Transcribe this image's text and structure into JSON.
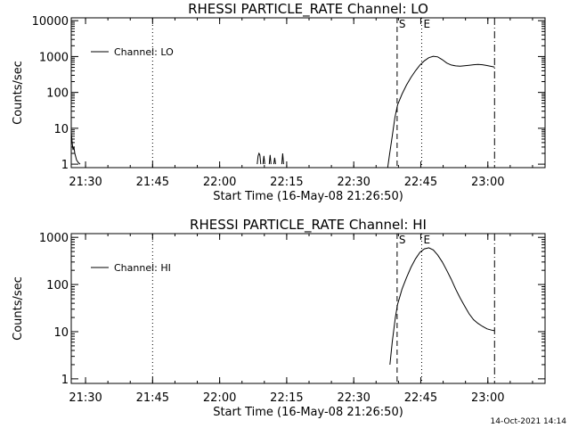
{
  "footer": {
    "timestamp": "14-Oct-2021 14:14"
  },
  "chart_data": [
    {
      "type": "line",
      "title": "RHESSI PARTICLE_RATE Channel: LO",
      "xlabel": "Start Time (16-May-08 21:26:50)",
      "ylabel": "Counts/sec",
      "x_unit": "minutes after 21:26:50 start",
      "xlim": [
        0,
        106
      ],
      "x_ticks": [
        {
          "x": 3.2,
          "label": "21:30"
        },
        {
          "x": 18.2,
          "label": "21:45"
        },
        {
          "x": 33.2,
          "label": "22:00"
        },
        {
          "x": 48.2,
          "label": "22:15"
        },
        {
          "x": 63.2,
          "label": "22:30"
        },
        {
          "x": 78.2,
          "label": "22:45"
        },
        {
          "x": 93.2,
          "label": "23:00"
        }
      ],
      "y_scale": "log",
      "ylim": [
        0.8,
        12000
      ],
      "y_ticks": [
        {
          "y": 1,
          "label": "1"
        },
        {
          "y": 10,
          "label": "10"
        },
        {
          "y": 100,
          "label": "100"
        },
        {
          "y": 1000,
          "label": "1000"
        },
        {
          "y": 10000,
          "label": "10000"
        }
      ],
      "legend": {
        "label": "Channel: LO",
        "position": "top-left"
      },
      "markers": [
        {
          "x": 18.2,
          "label": "",
          "style": "dotted"
        },
        {
          "x": 72.9,
          "label": "S",
          "style": "dashed"
        },
        {
          "x": 78.4,
          "label": "E",
          "style": "dotted"
        },
        {
          "x": 94.7,
          "label": "",
          "style": "dashdot"
        }
      ],
      "series": [
        {
          "name": "Channel: LO",
          "segments": [
            [
              [
                0,
                8
              ],
              [
                0.2,
                4
              ],
              [
                0.4,
                2.5
              ],
              [
                0.6,
                3
              ],
              [
                0.8,
                2
              ],
              [
                1.2,
                1.3
              ],
              [
                1.6,
                1.1
              ],
              [
                2,
                1
              ]
            ],
            [
              [
                41.6,
                1
              ],
              [
                41.8,
                1.7
              ],
              [
                42,
                2
              ],
              [
                42.2,
                1.8
              ],
              [
                42.4,
                1
              ]
            ],
            [
              [
                42.9,
                1
              ],
              [
                43.1,
                1.7
              ],
              [
                43.3,
                1
              ]
            ],
            [
              [
                44.3,
                1
              ],
              [
                44.5,
                1.8
              ],
              [
                44.7,
                1
              ]
            ],
            [
              [
                45.3,
                1
              ],
              [
                45.5,
                1.5
              ],
              [
                45.7,
                1
              ]
            ],
            [
              [
                47.1,
                1
              ],
              [
                47.3,
                2
              ],
              [
                47.5,
                1
              ]
            ],
            [
              [
                70.8,
                0.8
              ],
              [
                71.2,
                1.8
              ],
              [
                71.8,
                6
              ],
              [
                72.4,
                20
              ],
              [
                73,
                45
              ],
              [
                74,
                90
              ],
              [
                75,
                160
              ],
              [
                76,
                260
              ],
              [
                77,
                400
              ],
              [
                78,
                580
              ],
              [
                79,
                760
              ],
              [
                80,
                930
              ],
              [
                81,
                1020
              ],
              [
                82,
                980
              ],
              [
                83,
                820
              ],
              [
                84,
                660
              ],
              [
                85,
                580
              ],
              [
                86,
                550
              ],
              [
                87,
                540
              ],
              [
                88,
                555
              ],
              [
                89,
                570
              ],
              [
                90,
                590
              ],
              [
                91,
                600
              ],
              [
                92,
                590
              ],
              [
                93,
                560
              ],
              [
                94,
                530
              ],
              [
                94.7,
                510
              ]
            ]
          ]
        }
      ]
    },
    {
      "type": "line",
      "title": "RHESSI PARTICLE_RATE Channel: HI",
      "xlabel": "Start Time (16-May-08 21:26:50)",
      "ylabel": "Counts/sec",
      "x_unit": "minutes after 21:26:50 start",
      "xlim": [
        0,
        106
      ],
      "x_ticks": [
        {
          "x": 3.2,
          "label": "21:30"
        },
        {
          "x": 18.2,
          "label": "21:45"
        },
        {
          "x": 33.2,
          "label": "22:00"
        },
        {
          "x": 48.2,
          "label": "22:15"
        },
        {
          "x": 63.2,
          "label": "22:30"
        },
        {
          "x": 78.2,
          "label": "22:45"
        },
        {
          "x": 93.2,
          "label": "23:00"
        }
      ],
      "y_scale": "log",
      "ylim": [
        0.8,
        1200
      ],
      "y_ticks": [
        {
          "y": 1,
          "label": "1"
        },
        {
          "y": 10,
          "label": "10"
        },
        {
          "y": 100,
          "label": "100"
        },
        {
          "y": 1000,
          "label": "1000"
        }
      ],
      "legend": {
        "label": "Channel: HI",
        "position": "top-left"
      },
      "markers": [
        {
          "x": 18.2,
          "label": "",
          "style": "dotted"
        },
        {
          "x": 72.9,
          "label": "S",
          "style": "dashed"
        },
        {
          "x": 78.4,
          "label": "E",
          "style": "dotted"
        },
        {
          "x": 94.7,
          "label": "",
          "style": "dashdot"
        }
      ],
      "series": [
        {
          "name": "Channel: HI",
          "segments": [
            [
              [
                71.3,
                2
              ],
              [
                71.8,
                6
              ],
              [
                72.5,
                20
              ],
              [
                73,
                38
              ],
              [
                74,
                80
              ],
              [
                75,
                140
              ],
              [
                76,
                230
              ],
              [
                77,
                350
              ],
              [
                78,
                480
              ],
              [
                79,
                570
              ],
              [
                80,
                600
              ],
              [
                81,
                540
              ],
              [
                82,
                420
              ],
              [
                83,
                300
              ],
              [
                84,
                200
              ],
              [
                85,
                130
              ],
              [
                86,
                80
              ],
              [
                87,
                52
              ],
              [
                88,
                35
              ],
              [
                89,
                24
              ],
              [
                90,
                18
              ],
              [
                91,
                15
              ],
              [
                92,
                13
              ],
              [
                93,
                11.5
              ],
              [
                94,
                10.8
              ],
              [
                94.7,
                10.5
              ]
            ]
          ]
        }
      ]
    }
  ]
}
